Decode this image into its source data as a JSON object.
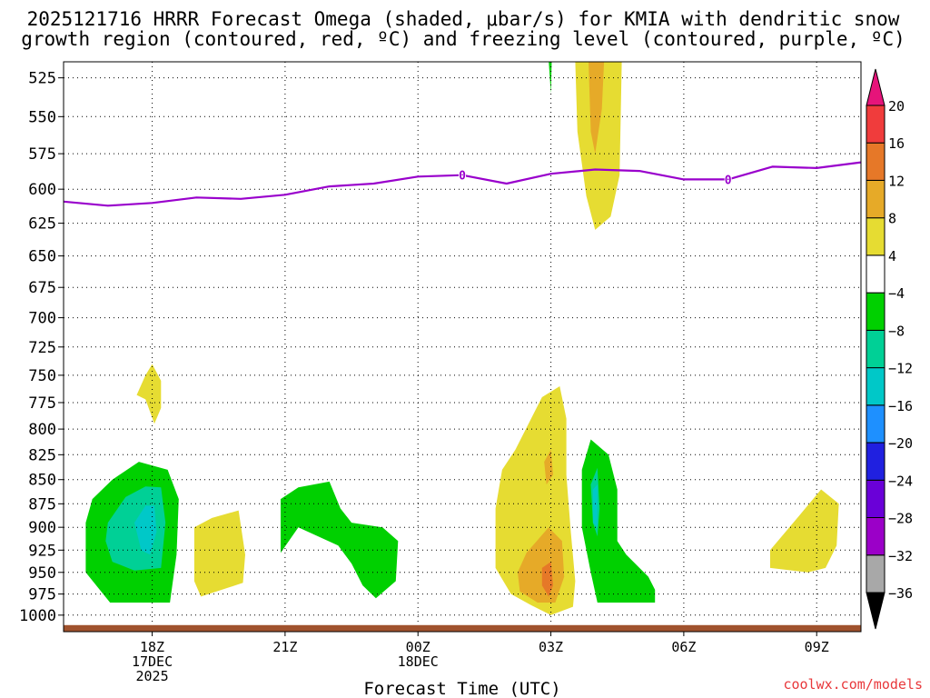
{
  "chart_data": {
    "type": "heatmap",
    "title_lines": [
      "2025121716 HRRR Forecast Omega (shaded, μbar/s) for KMIA with dendritic snow",
      "growth region (contoured, red, ºC) and freezing level (contoured, purple, ºC)"
    ],
    "xlabel": "Forecast Time (UTC)",
    "ylabel": "",
    "credit": "coolwx.com/models",
    "x_unit": "forecast hour (from 2025-12-17 16Z)",
    "xlim": [
      0,
      18
    ],
    "y_unit": "pressure (hPa)",
    "ylim": [
      1020,
      515
    ],
    "y_ticks": [
      525,
      550,
      575,
      600,
      625,
      650,
      675,
      700,
      725,
      750,
      775,
      800,
      825,
      850,
      875,
      900,
      925,
      950,
      975,
      1000
    ],
    "x_ticks": [
      {
        "x": 2,
        "lines": [
          "18Z",
          "17DEC",
          "2025"
        ]
      },
      {
        "x": 5,
        "lines": [
          "21Z"
        ]
      },
      {
        "x": 8,
        "lines": [
          "00Z",
          "18DEC"
        ]
      },
      {
        "x": 11,
        "lines": [
          "03Z"
        ]
      },
      {
        "x": 14,
        "lines": [
          "06Z"
        ]
      },
      {
        "x": 17,
        "lines": [
          "09Z"
        ]
      }
    ],
    "colorbar": {
      "levels": [
        -36,
        -32,
        -28,
        -24,
        -20,
        -16,
        -12,
        -8,
        -4,
        4,
        8,
        12,
        16,
        20
      ],
      "labels": [
        "20",
        "16",
        "12",
        "8",
        "4",
        "−4",
        "−8",
        "−12",
        "−16",
        "−20",
        "−24",
        "−28",
        "−32",
        "−36"
      ],
      "colors": [
        "#000000",
        "#a8a8a8",
        "#9b00c8",
        "#6a00d8",
        "#2020e0",
        "#1e90ff",
        "#00c8c8",
        "#00d096",
        "#00d000",
        "#ffffff",
        "#e6dc32",
        "#e6aa28",
        "#e67828",
        "#f03c3c",
        "#e6147a"
      ]
    },
    "freezing_level": {
      "color": "#9900cc",
      "x": [
        0,
        1,
        2,
        3,
        4,
        5,
        6,
        7,
        8,
        9,
        10,
        11,
        12,
        13,
        14,
        15,
        16,
        17,
        18
      ],
      "pressure": [
        609,
        612,
        610,
        606,
        607,
        604,
        598,
        596,
        591,
        590,
        596,
        589,
        586,
        587,
        593,
        593,
        584,
        585,
        581
      ],
      "labels": [
        {
          "x": 9,
          "text": "0"
        },
        {
          "x": 15,
          "text": "0"
        }
      ]
    },
    "surface": {
      "pressure": 1012,
      "color": "#a0522d"
    },
    "omega_regions": [
      {
        "name": "omega-green-18z",
        "color": "#00d000",
        "x": [
          0.5,
          0.65,
          1.1,
          1.7,
          2.35,
          2.6,
          2.55,
          2.4,
          1.05,
          0.5,
          0.5
        ],
        "p": [
          895,
          870,
          850,
          832,
          840,
          870,
          930,
          985,
          985,
          950,
          895
        ]
      },
      {
        "name": "omega-seagreen-18z",
        "color": "#00d096",
        "x": [
          1.0,
          1.4,
          1.85,
          2.2,
          2.3,
          2.2,
          1.6,
          1.1,
          0.95,
          1.0
        ],
        "p": [
          895,
          868,
          857,
          858,
          895,
          945,
          948,
          938,
          915,
          895
        ]
      },
      {
        "name": "omega-cyan-18z",
        "color": "#00c8c8",
        "x": [
          1.6,
          1.85,
          2.05,
          2.1,
          1.95,
          1.75,
          1.6
        ],
        "p": [
          895,
          877,
          877,
          905,
          930,
          925,
          895
        ]
      },
      {
        "name": "omega-yellow-750",
        "color": "#e6dc32",
        "x": [
          1.65,
          1.85,
          2.0,
          2.2,
          2.2,
          2.05,
          1.85,
          1.65
        ],
        "p": [
          768,
          750,
          740,
          755,
          780,
          795,
          772,
          768
        ]
      },
      {
        "name": "omega-yellow-19z",
        "color": "#e6dc32",
        "x": [
          2.95,
          3.35,
          3.95,
          4.1,
          4.05,
          3.1,
          2.95,
          2.95
        ],
        "p": [
          900,
          890,
          882,
          930,
          962,
          978,
          960,
          900
        ]
      },
      {
        "name": "omega-green-21z",
        "color": "#00d000",
        "x": [
          4.9,
          5.3,
          6.0,
          6.25,
          6.5,
          7.2,
          7.55,
          7.5,
          7.05,
          6.75,
          6.5,
          6.2,
          5.3,
          4.9,
          4.9
        ],
        "p": [
          870,
          858,
          852,
          880,
          895,
          900,
          915,
          960,
          980,
          965,
          940,
          920,
          900,
          928,
          870
        ]
      },
      {
        "name": "omega-green-03z-top",
        "color": "#00d000",
        "x": [
          10.95,
          11.02,
          11.0,
          10.95
        ],
        "p": [
          514,
          514,
          535,
          514
        ]
      },
      {
        "name": "omega-yellow-03z-upper",
        "color": "#e6dc32",
        "x": [
          11.55,
          12.6,
          12.55,
          12.35,
          12.0,
          11.8,
          11.6,
          11.55
        ],
        "p": [
          515,
          515,
          590,
          620,
          630,
          605,
          560,
          515
        ]
      },
      {
        "name": "omega-gold-03z-upper",
        "color": "#e6aa28",
        "x": [
          11.85,
          12.2,
          12.15,
          12.0,
          11.9,
          11.85
        ],
        "p": [
          515,
          515,
          545,
          575,
          560,
          515
        ]
      },
      {
        "name": "omega-yellow-03z-lower",
        "color": "#e6dc32",
        "x": [
          10.8,
          11.2,
          11.35,
          11.35,
          11.45,
          11.55,
          11.5,
          11.0,
          10.55,
          10.1,
          9.75,
          9.75,
          9.9,
          10.2,
          10.8
        ],
        "p": [
          770,
          760,
          790,
          845,
          905,
          960,
          990,
          1000,
          988,
          975,
          945,
          880,
          840,
          820,
          770
        ]
      },
      {
        "name": "omega-gold-03z-lower",
        "color": "#e6aa28",
        "x": [
          10.45,
          10.95,
          11.25,
          11.3,
          11.1,
          10.7,
          10.3,
          10.25,
          10.45
        ],
        "p": [
          928,
          900,
          915,
          955,
          985,
          985,
          972,
          950,
          928
        ]
      },
      {
        "name": "omega-gold-03z-850",
        "color": "#e6aa28",
        "x": [
          10.85,
          11.0,
          11.05,
          10.9,
          10.85
        ],
        "p": [
          832,
          820,
          845,
          855,
          832
        ]
      },
      {
        "name": "omega-orange-03z",
        "color": "#e67828",
        "x": [
          10.8,
          11.0,
          11.05,
          10.95,
          10.8,
          10.8
        ],
        "p": [
          945,
          938,
          965,
          978,
          965,
          945
        ]
      },
      {
        "name": "omega-green-04z",
        "color": "#00d000",
        "x": [
          11.7,
          11.9,
          12.3,
          12.5,
          12.5,
          12.7,
          13.2,
          13.35,
          13.35,
          12.85,
          12.05,
          11.9,
          11.7,
          11.7
        ],
        "p": [
          840,
          810,
          825,
          860,
          915,
          930,
          955,
          970,
          985,
          985,
          985,
          950,
          900,
          840
        ]
      },
      {
        "name": "omega-seagreen-04z",
        "color": "#00d096",
        "x": [
          11.9,
          12.05,
          12.1,
          12.05,
          11.95,
          11.9
        ],
        "p": [
          855,
          838,
          880,
          910,
          895,
          855
        ]
      },
      {
        "name": "omega-cyan-04z",
        "color": "#00c8c8",
        "x": [
          11.95,
          12.05,
          12.05,
          11.95,
          11.95
        ],
        "p": [
          860,
          855,
          900,
          895,
          860
        ]
      },
      {
        "name": "omega-yellow-08z",
        "color": "#e6dc32",
        "x": [
          15.95,
          16.6,
          17.1,
          17.5,
          17.45,
          17.2,
          16.8,
          15.95,
          15.95
        ],
        "p": [
          925,
          888,
          860,
          875,
          920,
          945,
          950,
          945,
          925
        ]
      }
    ]
  }
}
